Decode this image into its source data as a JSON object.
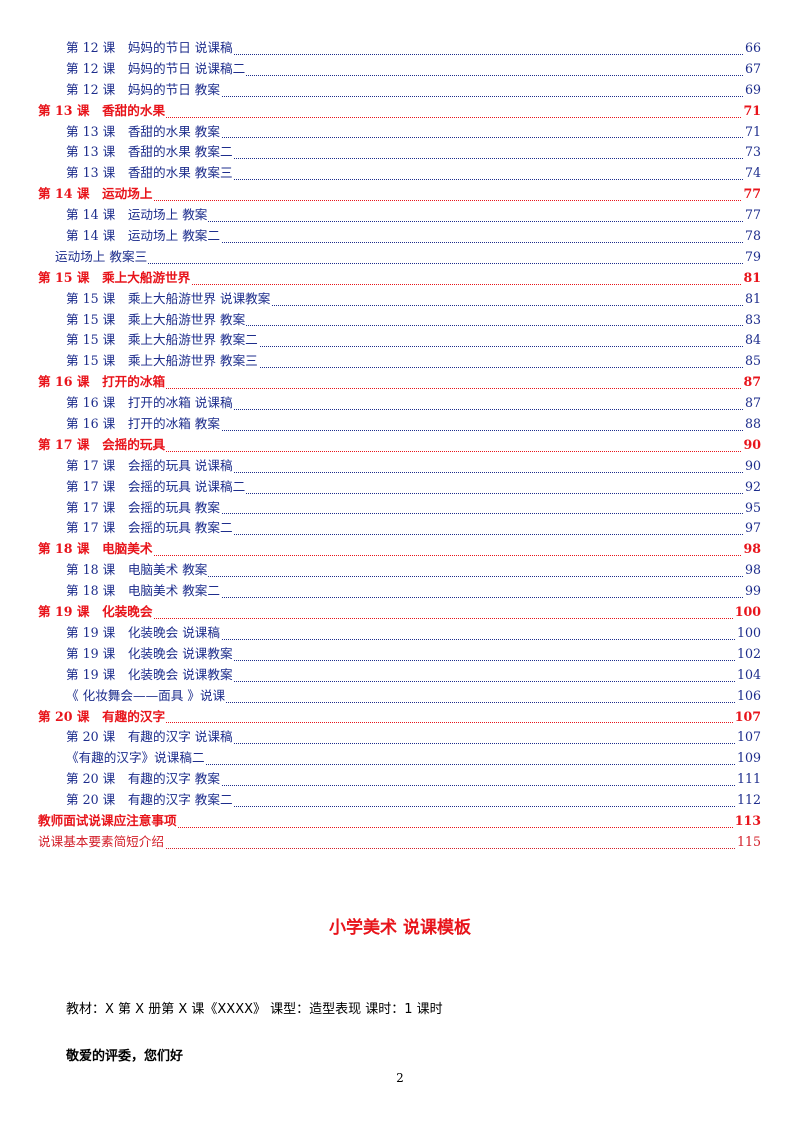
{
  "toc": [
    {
      "level": "sub",
      "text": "第 12 课　妈妈的节日 说课稿",
      "page": "66"
    },
    {
      "level": "sub",
      "text": "第 12 课　妈妈的节日 说课稿二",
      "page": "67"
    },
    {
      "level": "sub",
      "text": "第 12 课　妈妈的节日 教案",
      "page": "69"
    },
    {
      "level": "head",
      "text": "第 13 课　香甜的水果",
      "page": "71"
    },
    {
      "level": "sub",
      "text": "第 13 课　香甜的水果 教案",
      "page": "71"
    },
    {
      "level": "sub",
      "text": "第 13 课　香甜的水果 教案二",
      "page": "73"
    },
    {
      "level": "sub",
      "text": "第 13 课　香甜的水果 教案三",
      "page": "74"
    },
    {
      "level": "head",
      "text": "第 14 课　运动场上",
      "page": "77"
    },
    {
      "level": "sub",
      "text": "第 14 课　运动场上 教案",
      "page": "77"
    },
    {
      "level": "sub",
      "text": "第 14 课　运动场上 教案二",
      "page": "78"
    },
    {
      "level": "sub2",
      "text": "运动场上 教案三",
      "page": "79"
    },
    {
      "level": "head",
      "text": "第 15 课　乘上大船游世界",
      "page": "81"
    },
    {
      "level": "sub",
      "text": "第 15 课　乘上大船游世界 说课教案",
      "page": "81"
    },
    {
      "level": "sub",
      "text": "第 15 课　乘上大船游世界 教案",
      "page": "83"
    },
    {
      "level": "sub",
      "text": "第 15 课　乘上大船游世界 教案二",
      "page": "84"
    },
    {
      "level": "sub",
      "text": "第 15 课　乘上大船游世界 教案三",
      "page": "85"
    },
    {
      "level": "head",
      "text": "第 16 课　打开的冰箱",
      "page": "87"
    },
    {
      "level": "sub",
      "text": "第 16 课　打开的冰箱 说课稿",
      "page": "87"
    },
    {
      "level": "sub",
      "text": "第 16 课　打开的冰箱 教案",
      "page": "88"
    },
    {
      "level": "head",
      "text": "第 17 课　会摇的玩具",
      "page": "90"
    },
    {
      "level": "sub",
      "text": "第 17 课　会摇的玩具 说课稿",
      "page": "90"
    },
    {
      "level": "sub",
      "text": "第 17 课　会摇的玩具 说课稿二",
      "page": "92"
    },
    {
      "level": "sub",
      "text": "第 17 课　会摇的玩具 教案",
      "page": "95"
    },
    {
      "level": "sub",
      "text": "第 17 课　会摇的玩具 教案二",
      "page": "97"
    },
    {
      "level": "head",
      "text": "第 18 课　电脑美术",
      "page": "98"
    },
    {
      "level": "sub",
      "text": "第 18 课　电脑美术 教案",
      "page": "98"
    },
    {
      "level": "sub",
      "text": "第 18 课　电脑美术 教案二",
      "page": "99"
    },
    {
      "level": "head",
      "text": "第 19 课　化装晚会",
      "page": "100"
    },
    {
      "level": "sub",
      "text": "第 19 课　化装晚会 说课稿",
      "page": "100"
    },
    {
      "level": "sub",
      "text": "第 19 课　化装晚会 说课教案",
      "page": "102"
    },
    {
      "level": "sub",
      "text": "第 19 课　化装晚会 说课教案",
      "page": "104"
    },
    {
      "level": "sub",
      "text": "《 化妆舞会——面具 》说课",
      "page": "106"
    },
    {
      "level": "head",
      "text": "第 20 课　有趣的汉字",
      "page": "107"
    },
    {
      "level": "sub",
      "text": "第 20 课　有趣的汉字 说课稿",
      "page": "107"
    },
    {
      "level": "sub",
      "text": "《有趣的汉字》说课稿二",
      "page": "109"
    },
    {
      "level": "sub",
      "text": "第 20 课　有趣的汉字 教案",
      "page": "111"
    },
    {
      "level": "sub",
      "text": "第 20 课　有趣的汉字 教案二",
      "page": "112"
    },
    {
      "level": "head",
      "text": "教师面试说课应注意事项",
      "page": "113"
    },
    {
      "level": "plain",
      "text": "说课基本要素简短介绍",
      "page": "115"
    }
  ],
  "title": "小学美术 说课模板",
  "meta_line": "教材：X 第 X 册第 X 课《XXXX》 课型：造型表现 课时：1 课时",
  "greeting": "敬爱的评委，您们好",
  "page_number": "2"
}
